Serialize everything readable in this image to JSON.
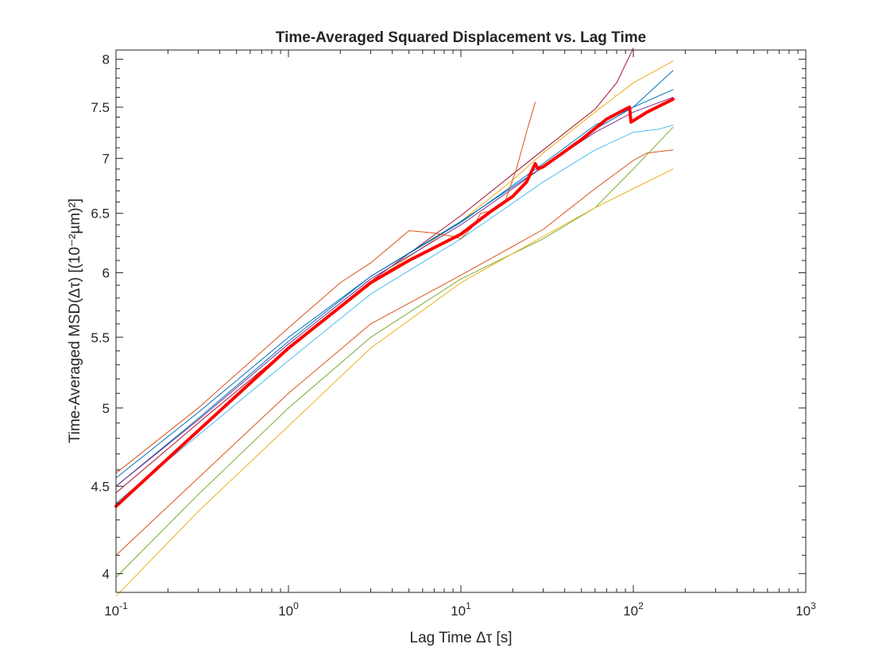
{
  "chart_data": {
    "type": "line",
    "title": "Time-Averaged Squared Displacement vs. Lag Time",
    "xlabel": "Lag Time Δτ [s]",
    "ylabel": "Time-Averaged MSD(Δτ) [(10⁻²µm)²]",
    "xscale": "log",
    "yscale": "log",
    "xlim": [
      0.1,
      1000
    ],
    "ylim": [
      3.9,
      8.1
    ],
    "grid": false,
    "legend": "none",
    "x_ticks": [
      {
        "value": 0.1,
        "base": "10",
        "exp": "-1"
      },
      {
        "value": 1,
        "base": "10",
        "exp": "0"
      },
      {
        "value": 10,
        "base": "10",
        "exp": "1"
      },
      {
        "value": 100,
        "base": "10",
        "exp": "2"
      },
      {
        "value": 1000,
        "base": "10",
        "exp": "3"
      }
    ],
    "y_ticks": [
      {
        "value": 4,
        "label": "4"
      },
      {
        "value": 4.5,
        "label": "4.5"
      },
      {
        "value": 5,
        "label": "5"
      },
      {
        "value": 5.5,
        "label": "5.5"
      },
      {
        "value": 6,
        "label": "6"
      },
      {
        "value": 6.5,
        "label": "6.5"
      },
      {
        "value": 7,
        "label": "7"
      },
      {
        "value": 7.5,
        "label": "7.5"
      },
      {
        "value": 8,
        "label": "8"
      }
    ],
    "series": [
      {
        "color": "#A2142F",
        "width": 1,
        "points": [
          [
            0.1,
            4.46
          ],
          [
            0.3,
            4.9
          ],
          [
            1,
            5.42
          ],
          [
            3,
            5.93
          ],
          [
            10,
            6.48
          ],
          [
            30,
            7.08
          ],
          [
            60,
            7.48
          ],
          [
            80,
            7.75
          ],
          [
            100,
            8.12
          ]
        ]
      },
      {
        "color": "#EDB120",
        "width": 1,
        "points": [
          [
            1,
            5.42
          ],
          [
            3,
            5.92
          ],
          [
            10,
            6.43
          ],
          [
            20,
            6.8
          ],
          [
            30,
            7.05
          ],
          [
            60,
            7.45
          ],
          [
            100,
            7.75
          ],
          [
            170,
            7.98
          ]
        ]
      },
      {
        "color": "#0072BD",
        "width": 1,
        "points": [
          [
            0.1,
            4.5
          ],
          [
            0.3,
            4.93
          ],
          [
            1,
            5.47
          ],
          [
            3,
            5.97
          ],
          [
            10,
            6.43
          ],
          [
            30,
            6.92
          ],
          [
            60,
            7.28
          ],
          [
            100,
            7.5
          ],
          [
            170,
            7.88
          ]
        ]
      },
      {
        "color": "#0072BD",
        "width": 1,
        "points": [
          [
            0.1,
            4.55
          ],
          [
            0.3,
            4.97
          ],
          [
            1,
            5.5
          ],
          [
            3,
            5.97
          ],
          [
            10,
            6.42
          ],
          [
            30,
            6.95
          ],
          [
            60,
            7.32
          ],
          [
            100,
            7.5
          ],
          [
            170,
            7.68
          ]
        ]
      },
      {
        "color": "#7E2F8E",
        "width": 1,
        "points": [
          [
            0.1,
            4.5
          ],
          [
            0.3,
            4.92
          ],
          [
            1,
            5.45
          ],
          [
            3,
            5.95
          ],
          [
            10,
            6.4
          ],
          [
            20,
            6.72
          ],
          [
            30,
            6.92
          ],
          [
            60,
            7.25
          ],
          [
            100,
            7.45
          ],
          [
            170,
            7.6
          ]
        ]
      },
      {
        "color": "#4DBEEE",
        "width": 1,
        "points": [
          [
            0.1,
            4.4
          ],
          [
            0.3,
            4.82
          ],
          [
            1,
            5.33
          ],
          [
            3,
            5.83
          ],
          [
            10,
            6.28
          ],
          [
            30,
            6.78
          ],
          [
            60,
            7.08
          ],
          [
            100,
            7.25
          ],
          [
            140,
            7.28
          ],
          [
            170,
            7.32
          ]
        ]
      },
      {
        "color": "#D95319",
        "width": 1,
        "points": [
          [
            0.1,
            4.58
          ],
          [
            0.3,
            5.0
          ],
          [
            1,
            5.57
          ],
          [
            2,
            5.92
          ],
          [
            3,
            6.08
          ],
          [
            5,
            6.35
          ],
          [
            7,
            6.33
          ],
          [
            9,
            6.3
          ],
          [
            10,
            6.28
          ],
          [
            12,
            6.4
          ],
          [
            13,
            6.5
          ],
          [
            15,
            6.52
          ],
          [
            18,
            6.6
          ],
          [
            21,
            6.9
          ],
          [
            24,
            7.25
          ],
          [
            27,
            7.55
          ]
        ]
      },
      {
        "color": "#D95319",
        "width": 1,
        "points": [
          [
            0.1,
            4.1
          ],
          [
            0.3,
            4.55
          ],
          [
            1,
            5.1
          ],
          [
            3,
            5.6
          ],
          [
            10,
            5.98
          ],
          [
            30,
            6.36
          ],
          [
            60,
            6.72
          ],
          [
            100,
            6.98
          ],
          [
            120,
            7.05
          ],
          [
            170,
            7.08
          ]
        ]
      },
      {
        "color": "#77AC30",
        "width": 1,
        "points": [
          [
            0.1,
            3.98
          ],
          [
            0.3,
            4.45
          ],
          [
            1,
            5.0
          ],
          [
            3,
            5.5
          ],
          [
            10,
            5.95
          ],
          [
            30,
            6.28
          ],
          [
            60,
            6.55
          ],
          [
            100,
            6.9
          ],
          [
            170,
            7.3
          ]
        ]
      },
      {
        "color": "#EDB120",
        "width": 1,
        "points": [
          [
            0.1,
            3.88
          ],
          [
            0.3,
            4.35
          ],
          [
            1,
            4.88
          ],
          [
            3,
            5.42
          ],
          [
            10,
            5.92
          ],
          [
            30,
            6.3
          ],
          [
            60,
            6.55
          ],
          [
            100,
            6.72
          ],
          [
            170,
            6.9
          ]
        ]
      },
      {
        "color": "#FF0000",
        "width": 4,
        "points": [
          [
            0.1,
            4.38
          ],
          [
            0.3,
            4.85
          ],
          [
            1,
            5.42
          ],
          [
            3,
            5.92
          ],
          [
            5,
            6.1
          ],
          [
            10,
            6.32
          ],
          [
            15,
            6.52
          ],
          [
            20,
            6.65
          ],
          [
            24,
            6.78
          ],
          [
            27,
            6.95
          ],
          [
            28,
            6.9
          ],
          [
            30,
            6.92
          ],
          [
            50,
            7.18
          ],
          [
            70,
            7.38
          ],
          [
            90,
            7.48
          ],
          [
            95,
            7.5
          ],
          [
            97,
            7.35
          ],
          [
            120,
            7.45
          ],
          [
            170,
            7.58
          ]
        ]
      }
    ]
  }
}
